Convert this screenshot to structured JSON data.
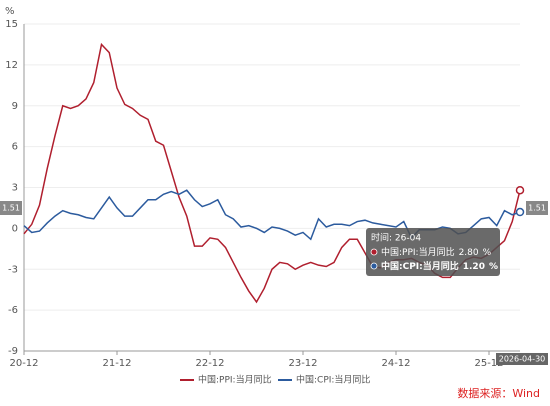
{
  "chart_data": {
    "type": "line",
    "unit": "%",
    "categories": [
      "20-12",
      null,
      null,
      null,
      null,
      null,
      null,
      null,
      null,
      null,
      null,
      null,
      "21-12",
      null,
      null,
      null,
      null,
      null,
      null,
      null,
      null,
      null,
      null,
      null,
      "22-12",
      null,
      null,
      null,
      null,
      null,
      null,
      null,
      null,
      null,
      null,
      null,
      "23-12",
      null,
      null,
      null,
      null,
      null,
      null,
      null,
      null,
      null,
      null,
      null,
      "24-12",
      null,
      null,
      null,
      null,
      null,
      null,
      null,
      null,
      null,
      null,
      null,
      "25-12",
      null,
      null,
      null,
      null
    ],
    "series": [
      {
        "name": "中国:PPI:当月同比",
        "color": "#b01f2e",
        "values": [
          -0.4,
          0.3,
          1.7,
          4.4,
          6.8,
          9.0,
          8.8,
          9.0,
          9.5,
          10.7,
          13.5,
          12.9,
          10.3,
          9.1,
          8.8,
          8.3,
          8.0,
          6.4,
          6.1,
          4.2,
          2.3,
          0.9,
          -1.3,
          -1.3,
          -0.7,
          -0.8,
          -1.4,
          -2.5,
          -3.6,
          -4.6,
          -5.4,
          -4.4,
          -3.0,
          -2.5,
          -2.6,
          -3.0,
          -2.7,
          -2.5,
          -2.7,
          -2.8,
          -2.5,
          -1.4,
          -0.8,
          -0.8,
          -1.8,
          -2.8,
          -2.9,
          -2.5,
          -2.3,
          -2.3,
          -2.2,
          -2.5,
          -2.7,
          -3.3,
          -3.6,
          -3.6,
          -2.9,
          -2.3,
          -2.1,
          -2.2,
          -1.9,
          -1.4,
          -0.9,
          0.5,
          2.8
        ]
      },
      {
        "name": "中国:CPI:当月同比",
        "color": "#2c5b9e",
        "values": [
          0.2,
          -0.3,
          -0.2,
          0.4,
          0.9,
          1.3,
          1.1,
          1.0,
          0.8,
          0.7,
          1.5,
          2.3,
          1.5,
          0.9,
          0.9,
          1.5,
          2.1,
          2.1,
          2.5,
          2.7,
          2.5,
          2.8,
          2.1,
          1.6,
          1.8,
          2.1,
          1.0,
          0.7,
          0.1,
          0.2,
          0.0,
          -0.3,
          0.1,
          0.0,
          -0.2,
          -0.5,
          -0.3,
          -0.8,
          0.7,
          0.1,
          0.3,
          0.3,
          0.2,
          0.5,
          0.6,
          0.4,
          0.3,
          0.2,
          0.1,
          0.5,
          -0.7,
          -0.1,
          -0.1,
          -0.1,
          0.1,
          0.0,
          -0.4,
          -0.3,
          0.2,
          0.7,
          0.8,
          0.2,
          1.3,
          1.0,
          1.2
        ]
      }
    ],
    "ylim": [
      -9,
      15
    ],
    "yticks": [
      -9,
      -6,
      -3,
      0,
      3,
      6,
      9,
      12,
      15
    ],
    "grid": true,
    "tooltip": {
      "title": "时间: 26-04",
      "values": [
        "2.80",
        "1.20"
      ]
    },
    "pointer": {
      "y_label": "1.51",
      "x_label": "2026-04-30"
    },
    "source": "数据来源：Wind"
  }
}
